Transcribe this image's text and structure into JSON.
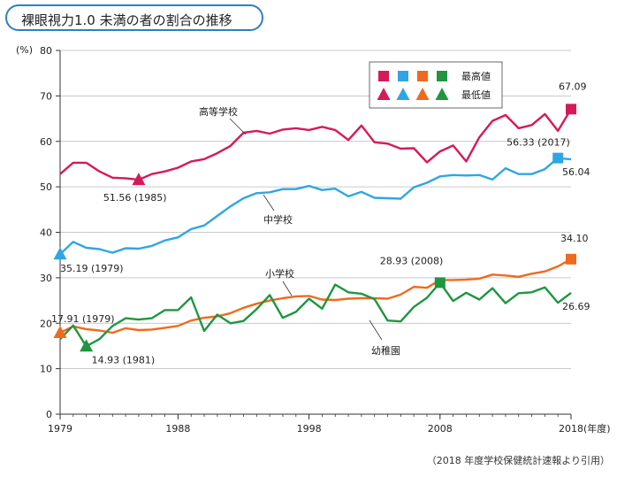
{
  "title": "裸眼視力1.0 未満の者の割合の推移",
  "source_note": "（2018 年度学校保健統計速報より引用）",
  "colors": {
    "high": "#d6195a",
    "middle": "#2fa6e3",
    "elementary": "#ef6a1f",
    "kinder": "#1f9640",
    "grid": "#b8b8b8"
  },
  "chart_data": {
    "type": "line",
    "ylabel": "(%)",
    "xlabel": "(年度)",
    "ylim": [
      0,
      80
    ],
    "xlim": [
      1979,
      2018
    ],
    "yticks": [
      0,
      10,
      20,
      30,
      40,
      50,
      60,
      70,
      80
    ],
    "xticks": [
      {
        "value": 1979,
        "label": "1979"
      },
      {
        "value": 1988,
        "label": "1988"
      },
      {
        "value": 1998,
        "label": "1998"
      },
      {
        "value": 2008,
        "label": "2008"
      },
      {
        "value": 2018,
        "label": "2018"
      }
    ],
    "x": [
      1979,
      1980,
      1981,
      1982,
      1983,
      1984,
      1985,
      1986,
      1987,
      1988,
      1989,
      1990,
      1991,
      1992,
      1993,
      1994,
      1995,
      1996,
      1997,
      1998,
      1999,
      2000,
      2001,
      2002,
      2003,
      2004,
      2005,
      2006,
      2007,
      2008,
      2009,
      2010,
      2011,
      2012,
      2013,
      2014,
      2015,
      2016,
      2017,
      2018
    ],
    "series": [
      {
        "name": "高等学校",
        "key": "high",
        "values": [
          52.8,
          55.3,
          55.3,
          53.4,
          52.0,
          51.9,
          51.56,
          52.8,
          53.4,
          54.2,
          55.6,
          56.1,
          57.4,
          59.0,
          61.9,
          62.3,
          61.7,
          62.6,
          62.9,
          62.5,
          63.2,
          62.5,
          60.3,
          63.5,
          59.8,
          59.5,
          58.4,
          58.5,
          55.4,
          57.8,
          59.1,
          55.6,
          60.9,
          64.5,
          65.8,
          62.9,
          63.6,
          66.0,
          62.3,
          67.09
        ]
      },
      {
        "name": "中学校",
        "key": "middle",
        "values": [
          35.19,
          37.9,
          36.6,
          36.3,
          35.5,
          36.5,
          36.4,
          37.0,
          38.2,
          38.9,
          40.7,
          41.5,
          43.6,
          45.7,
          47.5,
          48.6,
          48.8,
          49.5,
          49.5,
          50.2,
          49.3,
          49.6,
          47.9,
          48.9,
          47.6,
          47.5,
          47.4,
          49.9,
          50.9,
          52.3,
          52.6,
          52.5,
          52.6,
          51.6,
          54.1,
          52.8,
          52.8,
          53.9,
          56.33,
          56.04
        ]
      },
      {
        "name": "小学校",
        "key": "elementary",
        "values": [
          17.91,
          19.3,
          18.7,
          18.4,
          17.9,
          18.9,
          18.5,
          18.6,
          19.0,
          19.4,
          20.6,
          21.2,
          21.5,
          22.2,
          23.4,
          24.3,
          25.0,
          25.5,
          25.9,
          26.0,
          25.2,
          25.1,
          25.4,
          25.5,
          25.5,
          25.4,
          26.3,
          28.0,
          27.8,
          29.5,
          29.5,
          29.6,
          29.8,
          30.7,
          30.5,
          30.2,
          30.9,
          31.4,
          32.5,
          34.1
        ]
      },
      {
        "name": "幼稚園",
        "key": "kinder",
        "values": [
          16.5,
          19.5,
          14.93,
          16.5,
          19.4,
          21.1,
          20.8,
          21.1,
          22.9,
          22.9,
          25.7,
          18.3,
          21.9,
          20.0,
          20.5,
          23.1,
          26.2,
          21.2,
          22.5,
          25.4,
          23.2,
          28.5,
          26.8,
          26.5,
          25.3,
          20.6,
          20.4,
          23.6,
          25.6,
          28.93,
          24.9,
          26.7,
          25.2,
          27.7,
          24.4,
          26.6,
          26.8,
          27.9,
          24.5,
          26.69
        ]
      }
    ],
    "legend": {
      "position": "top-right",
      "max_label": "最高値",
      "min_label": "最低値"
    },
    "annotations": [
      {
        "series": "high",
        "kind": "max",
        "x": 2018,
        "y": 67.09,
        "label": "67.09"
      },
      {
        "series": "high",
        "kind": "min",
        "x": 1985,
        "y": 51.56,
        "label": "51.56 (1985)"
      },
      {
        "series": "middle",
        "kind": "max",
        "x": 2017,
        "y": 56.33,
        "label": "56.33 (2017)"
      },
      {
        "series": "middle",
        "kind": "min",
        "x": 1979,
        "y": 35.19,
        "label": "35.19 (1979)"
      },
      {
        "series": "middle",
        "kind": "last",
        "x": 2018,
        "y": 56.04,
        "label": "56.04"
      },
      {
        "series": "elementary",
        "kind": "max",
        "x": 2018,
        "y": 34.1,
        "label": "34.10"
      },
      {
        "series": "elementary",
        "kind": "min",
        "x": 1979,
        "y": 17.91,
        "label": "17.91 (1979)"
      },
      {
        "series": "kinder",
        "kind": "max",
        "x": 2008,
        "y": 28.93,
        "label": "28.93 (2008)"
      },
      {
        "series": "kinder",
        "kind": "min",
        "x": 1981,
        "y": 14.93,
        "label": "14.93 (1981)"
      },
      {
        "series": "kinder",
        "kind": "last",
        "x": 2018,
        "y": 26.69,
        "label": "26.69"
      }
    ]
  }
}
